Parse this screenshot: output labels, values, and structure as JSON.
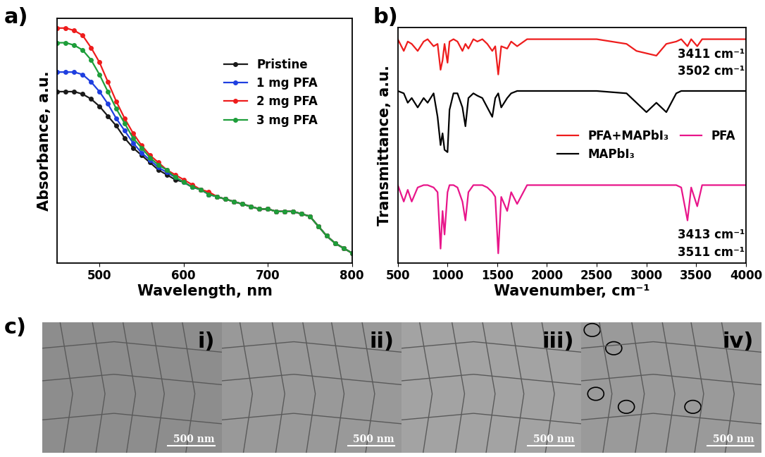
{
  "chart_data": [
    {
      "type": "line",
      "panel": "a)",
      "x_label": "Wavelength, nm",
      "y_label": "Absorbance, a.u.",
      "x": [
        450,
        460,
        470,
        480,
        490,
        500,
        510,
        520,
        530,
        540,
        550,
        560,
        570,
        580,
        590,
        600,
        610,
        620,
        630,
        640,
        650,
        660,
        670,
        680,
        690,
        700,
        710,
        720,
        730,
        740,
        750,
        760,
        770,
        780,
        790,
        800
      ],
      "series": [
        {
          "name": "Pristine",
          "color": "#1a1a1a",
          "marker": "circle",
          "values": [
            0.7,
            0.7,
            0.7,
            0.69,
            0.67,
            0.64,
            0.6,
            0.56,
            0.51,
            0.47,
            0.44,
            0.41,
            0.38,
            0.36,
            0.34,
            0.33,
            0.31,
            0.3,
            0.28,
            0.27,
            0.26,
            0.25,
            0.24,
            0.23,
            0.22,
            0.22,
            0.21,
            0.21,
            0.21,
            0.2,
            0.19,
            0.15,
            0.11,
            0.08,
            0.06,
            0.04
          ]
        },
        {
          "name": "1 mg PFA",
          "color": "#1f3fe0",
          "marker": "circle",
          "values": [
            0.78,
            0.78,
            0.78,
            0.77,
            0.74,
            0.7,
            0.65,
            0.59,
            0.54,
            0.49,
            0.45,
            0.42,
            0.39,
            0.37,
            0.35,
            0.33,
            0.31,
            0.3,
            0.28,
            0.27,
            0.26,
            0.25,
            0.24,
            0.23,
            0.22,
            0.22,
            0.21,
            0.21,
            0.21,
            0.2,
            0.19,
            0.15,
            0.11,
            0.08,
            0.06,
            0.04
          ]
        },
        {
          "name": "2 mg PFA",
          "color": "#ee1c1c",
          "marker": "circle",
          "values": [
            0.96,
            0.96,
            0.95,
            0.93,
            0.88,
            0.82,
            0.74,
            0.66,
            0.59,
            0.53,
            0.48,
            0.44,
            0.41,
            0.38,
            0.36,
            0.34,
            0.32,
            0.3,
            0.29,
            0.27,
            0.26,
            0.25,
            0.24,
            0.23,
            0.22,
            0.22,
            0.21,
            0.21,
            0.21,
            0.2,
            0.19,
            0.15,
            0.11,
            0.08,
            0.06,
            0.04
          ]
        },
        {
          "name": "3 mg PFA",
          "color": "#1e9e3a",
          "marker": "circle",
          "values": [
            0.9,
            0.9,
            0.89,
            0.87,
            0.83,
            0.77,
            0.7,
            0.63,
            0.57,
            0.51,
            0.47,
            0.43,
            0.4,
            0.38,
            0.35,
            0.33,
            0.31,
            0.3,
            0.28,
            0.27,
            0.26,
            0.25,
            0.24,
            0.23,
            0.22,
            0.22,
            0.21,
            0.21,
            0.21,
            0.2,
            0.19,
            0.15,
            0.11,
            0.08,
            0.06,
            0.04
          ]
        }
      ],
      "xlim": [
        450,
        800
      ],
      "xticks": [
        500,
        600,
        700,
        800
      ],
      "ylim": [
        0,
        1
      ],
      "yticks": [],
      "tick_labels": "x",
      "legend": "upper right"
    },
    {
      "type": "line",
      "panel": "b)",
      "x_label": "Wavenumber, cm⁻¹",
      "y_label": "Transmittance, a.u.",
      "x": [
        500,
        560,
        600,
        640,
        700,
        760,
        800,
        860,
        900,
        930,
        950,
        970,
        1000,
        1020,
        1060,
        1100,
        1150,
        1180,
        1210,
        1260,
        1300,
        1350,
        1400,
        1450,
        1480,
        1510,
        1540,
        1600,
        1640,
        1700,
        1800,
        2000,
        2200,
        2500,
        2800,
        2900,
        3000,
        3100,
        3200,
        3300,
        3350,
        3413,
        3450,
        3511,
        3560,
        3700,
        4000
      ],
      "series": [
        {
          "name": "PFA+MAPbI₃",
          "color": "#ee1c1c",
          "values": [
            0.95,
            0.9,
            0.94,
            0.93,
            0.9,
            0.94,
            0.95,
            0.92,
            0.93,
            0.82,
            0.86,
            0.93,
            0.85,
            0.94,
            0.95,
            0.94,
            0.9,
            0.93,
            0.91,
            0.95,
            0.94,
            0.95,
            0.93,
            0.9,
            0.92,
            0.8,
            0.92,
            0.91,
            0.94,
            0.92,
            0.95,
            0.95,
            0.95,
            0.95,
            0.93,
            0.9,
            0.89,
            0.88,
            0.93,
            0.94,
            0.95,
            0.92,
            0.95,
            0.92,
            0.95,
            0.95,
            0.95
          ]
        },
        {
          "name": "MAPbI₃",
          "color": "#000000",
          "values": [
            0.73,
            0.72,
            0.68,
            0.7,
            0.66,
            0.7,
            0.68,
            0.72,
            0.62,
            0.5,
            0.55,
            0.48,
            0.47,
            0.65,
            0.72,
            0.72,
            0.66,
            0.58,
            0.7,
            0.72,
            0.71,
            0.7,
            0.66,
            0.62,
            0.7,
            0.72,
            0.66,
            0.7,
            0.72,
            0.73,
            0.73,
            0.73,
            0.73,
            0.73,
            0.72,
            0.68,
            0.64,
            0.68,
            0.64,
            0.72,
            0.73,
            0.73,
            0.73,
            0.73,
            0.73,
            0.73,
            0.73
          ]
        },
        {
          "name": "PFA",
          "color": "#e8158a",
          "values": [
            0.33,
            0.26,
            0.31,
            0.26,
            0.32,
            0.33,
            0.33,
            0.32,
            0.3,
            0.06,
            0.22,
            0.12,
            0.3,
            0.33,
            0.33,
            0.32,
            0.26,
            0.18,
            0.3,
            0.33,
            0.33,
            0.33,
            0.32,
            0.3,
            0.28,
            0.04,
            0.28,
            0.22,
            0.3,
            0.25,
            0.33,
            0.33,
            0.33,
            0.33,
            0.33,
            0.33,
            0.33,
            0.33,
            0.33,
            0.33,
            0.32,
            0.18,
            0.32,
            0.24,
            0.33,
            0.33,
            0.33
          ]
        }
      ],
      "annotations": [
        {
          "text": "3411 cm⁻¹",
          "series": "PFA+MAPbI₃"
        },
        {
          "text": "3502 cm⁻¹",
          "series": "PFA+MAPbI₃"
        },
        {
          "text": "3413 cm⁻¹",
          "series": "PFA"
        },
        {
          "text": "3511 cm⁻¹",
          "series": "PFA"
        }
      ],
      "xlim": [
        500,
        4000
      ],
      "xticks": [
        500,
        1000,
        1500,
        2000,
        2500,
        3000,
        3500,
        4000
      ],
      "ylim": [
        0,
        1
      ],
      "yticks": [],
      "tick_labels": "x",
      "legend": "center right"
    },
    {
      "type": "image",
      "panel": "c)",
      "panels": [
        "i)",
        "ii)",
        "iii)",
        "iv)"
      ],
      "scale_bar": "500 nm"
    }
  ]
}
